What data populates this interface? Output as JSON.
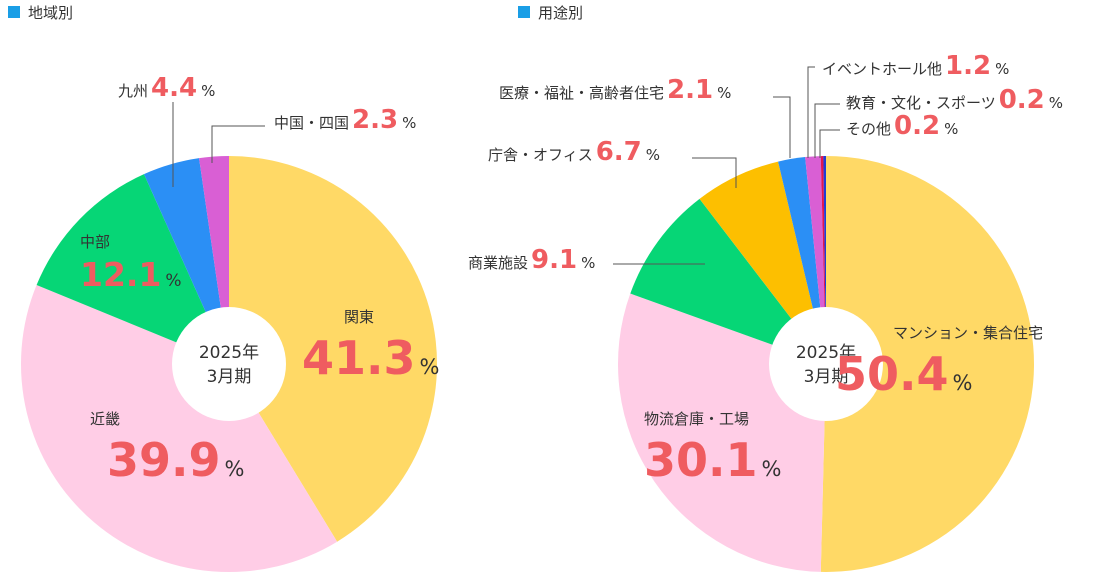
{
  "chart_data": [
    {
      "type": "pie",
      "title": "地域別",
      "center_label": [
        "2025年",
        "3月期"
      ],
      "slices": [
        {
          "label": "関東",
          "value": 41.3,
          "color": "#ffd966"
        },
        {
          "label": "近畿",
          "value": 39.9,
          "color": "#ffcde6"
        },
        {
          "label": "中部",
          "value": 12.1,
          "color": "#06d676"
        },
        {
          "label": "九州",
          "value": 4.4,
          "color": "#2b8ff5"
        },
        {
          "label": "中国・四国",
          "value": 2.3,
          "color": "#d95fd4"
        }
      ]
    },
    {
      "type": "pie",
      "title": "用途別",
      "center_label": [
        "2025年",
        "3月期"
      ],
      "slices": [
        {
          "label": "マンション・集合住宅",
          "value": 50.4,
          "color": "#ffd966"
        },
        {
          "label": "物流倉庫・工場",
          "value": 30.1,
          "color": "#ffcde6"
        },
        {
          "label": "商業施設",
          "value": 9.1,
          "color": "#06d676"
        },
        {
          "label": "庁舎・オフィス",
          "value": 6.7,
          "color": "#fdbf00"
        },
        {
          "label": "医療・福祉・高齢者住宅",
          "value": 2.1,
          "color": "#2b8ff5"
        },
        {
          "label": "イベントホール他",
          "value": 1.2,
          "color": "#d95fd4"
        },
        {
          "label": "教育・文化・スポーツ",
          "value": 0.2,
          "color": "#e3164f"
        },
        {
          "label": "その他",
          "value": 0.2,
          "color": "#1f3dd6"
        }
      ]
    }
  ],
  "legend_marker_color": "#1a9ee6",
  "percent_color": "#ef5c60",
  "percent_sign": "%"
}
